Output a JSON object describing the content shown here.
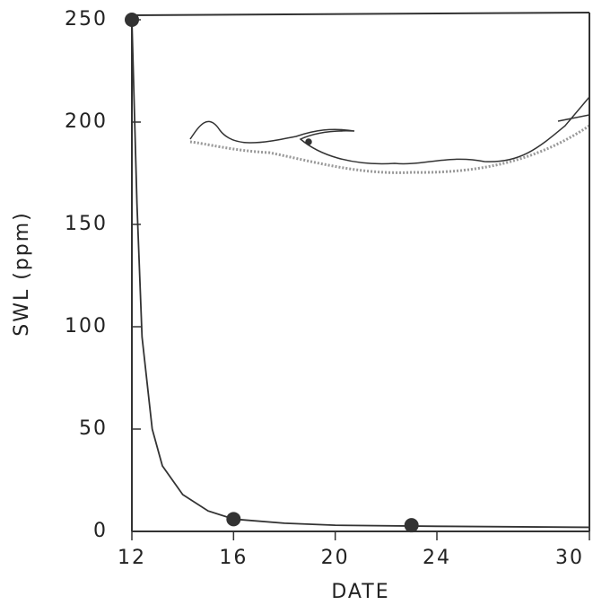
{
  "chart_data": {
    "type": "scatter",
    "x_label": "DATE",
    "y_label": "SWL (ppm)",
    "x": [
      12,
      16,
      23
    ],
    "values": [
      250,
      6,
      3
    ],
    "color": "#333333",
    "curve": {
      "x": [
        12,
        12.2,
        12.4,
        12.8,
        13.2,
        14,
        15,
        16,
        18,
        20,
        24,
        30
      ],
      "values": [
        250,
        160,
        95,
        50,
        32,
        18,
        10,
        6,
        4,
        3,
        2.5,
        2
      ]
    },
    "xlim": [
      12,
      30
    ],
    "xticks": [
      12,
      16,
      20,
      24,
      30
    ],
    "ylim": [
      0,
      250
    ],
    "yticks": [
      0,
      50,
      100,
      150,
      200,
      250
    ]
  }
}
